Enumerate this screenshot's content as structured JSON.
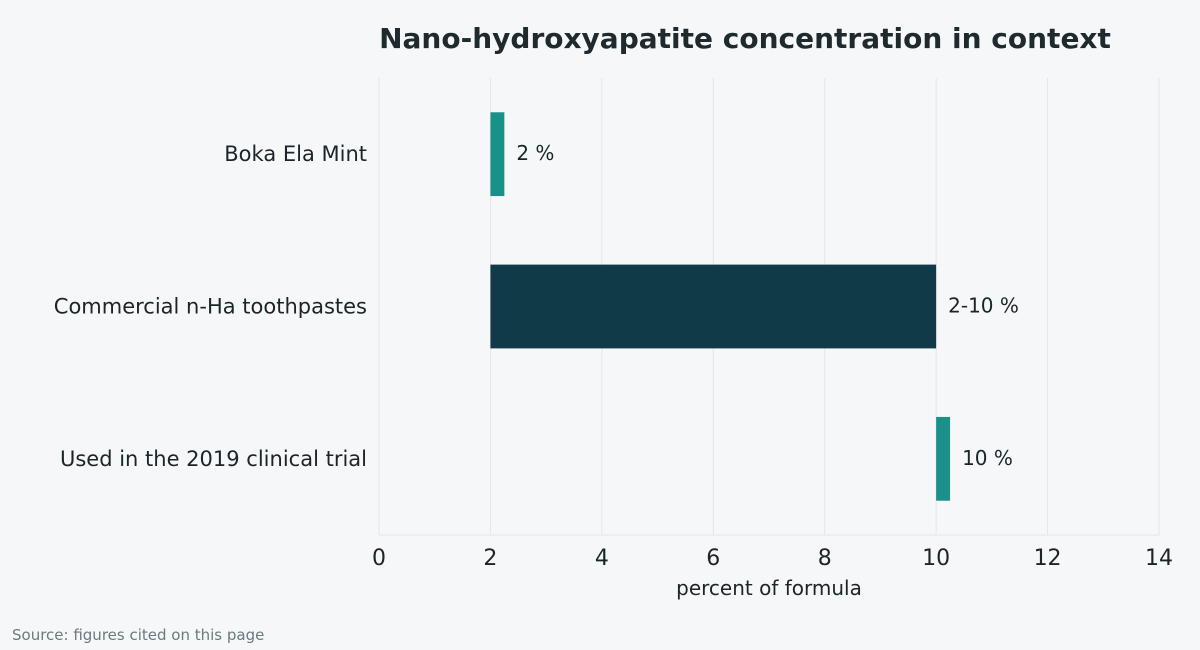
{
  "chart_data": {
    "type": "bar",
    "orientation": "horizontal",
    "title": "Nano-hydroxyapatite concentration in context",
    "xlabel": "percent of formula",
    "ylabel": "",
    "xlim": [
      0,
      14
    ],
    "xticks": [
      0,
      2,
      4,
      6,
      8,
      10,
      12,
      14
    ],
    "grid": true,
    "categories": [
      "Boka Ela Mint",
      "Commercial n-Ha toothpastes",
      "Used in the 2019 clinical trial"
    ],
    "bars": [
      {
        "category": "Boka Ela Mint",
        "start": 2,
        "end": 2.25,
        "label": "2 %",
        "color": "#1a9188"
      },
      {
        "category": "Commercial n-Ha toothpastes",
        "start": 2,
        "end": 10,
        "label": "2-10 %",
        "color": "#113a48"
      },
      {
        "category": "Used in the 2019 clinical trial",
        "start": 10,
        "end": 10.25,
        "label": "10 %",
        "color": "#1a9188"
      }
    ]
  },
  "source": "Source: figures cited on this page"
}
